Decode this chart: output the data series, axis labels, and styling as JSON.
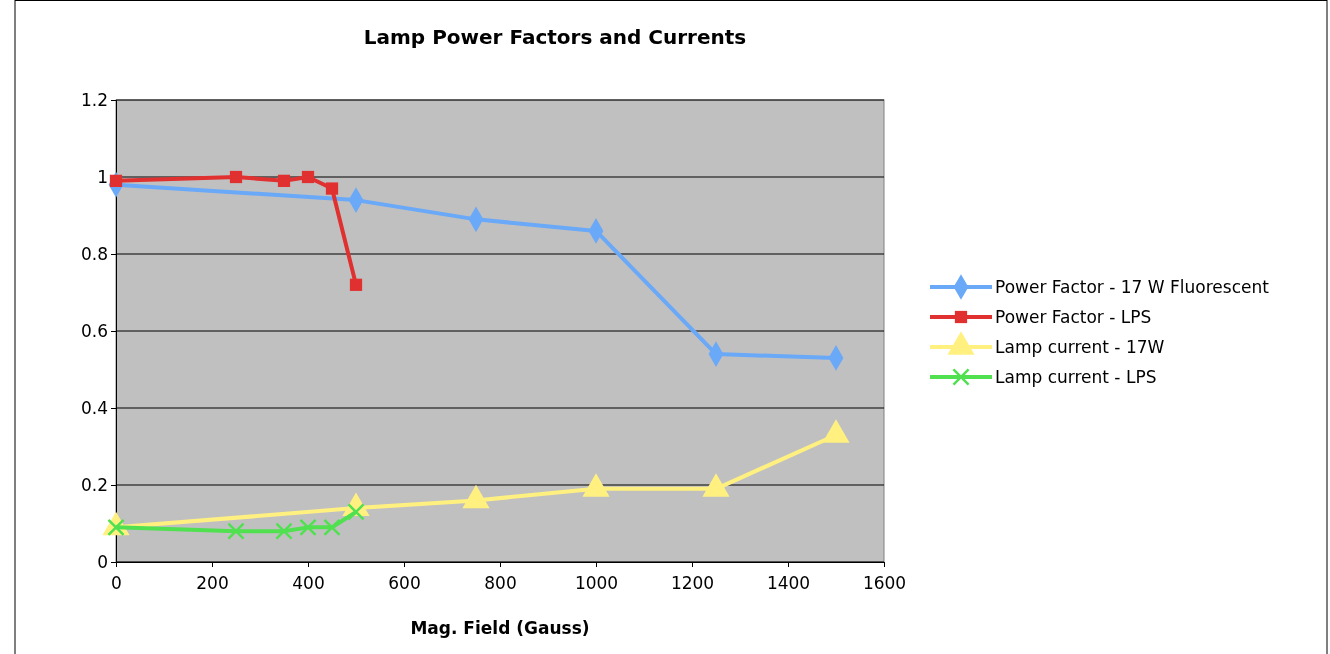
{
  "chart_data": {
    "type": "line",
    "title": "Lamp Power Factors and Currents",
    "xlabel": "Mag. Field (Gauss)",
    "xlim": [
      0,
      1600
    ],
    "xticks": [
      0,
      200,
      400,
      600,
      800,
      1000,
      1200,
      1400,
      1600
    ],
    "ylim": [
      0,
      1.2
    ],
    "yticks": [
      0,
      0.2,
      0.4,
      0.6,
      0.8,
      1,
      1.2
    ],
    "grid": "y",
    "legend": "right",
    "series": [
      {
        "name": "Power Factor - 17 W Fluorescent",
        "color": "#6aa8f8",
        "marker": "diamond",
        "x": [
          0,
          500,
          750,
          1000,
          1250,
          1500
        ],
        "values": [
          0.98,
          0.94,
          0.89,
          0.86,
          0.54,
          0.53
        ]
      },
      {
        "name": "Power Factor - LPS",
        "color": "#e03030",
        "marker": "square",
        "x": [
          0,
          250,
          350,
          400,
          450,
          500
        ],
        "values": [
          0.99,
          1.0,
          0.99,
          1.0,
          0.97,
          0.72
        ]
      },
      {
        "name": "Lamp current - 17W",
        "color": "#fff080",
        "marker": "triangle",
        "x": [
          0,
          500,
          750,
          1000,
          1250,
          1500
        ],
        "values": [
          0.09,
          0.14,
          0.16,
          0.19,
          0.19,
          0.33
        ]
      },
      {
        "name": "Lamp current - LPS",
        "color": "#50e050",
        "marker": "cross",
        "x": [
          0,
          250,
          350,
          400,
          450,
          500
        ],
        "values": [
          0.09,
          0.08,
          0.08,
          0.09,
          0.09,
          0.13
        ]
      }
    ]
  }
}
